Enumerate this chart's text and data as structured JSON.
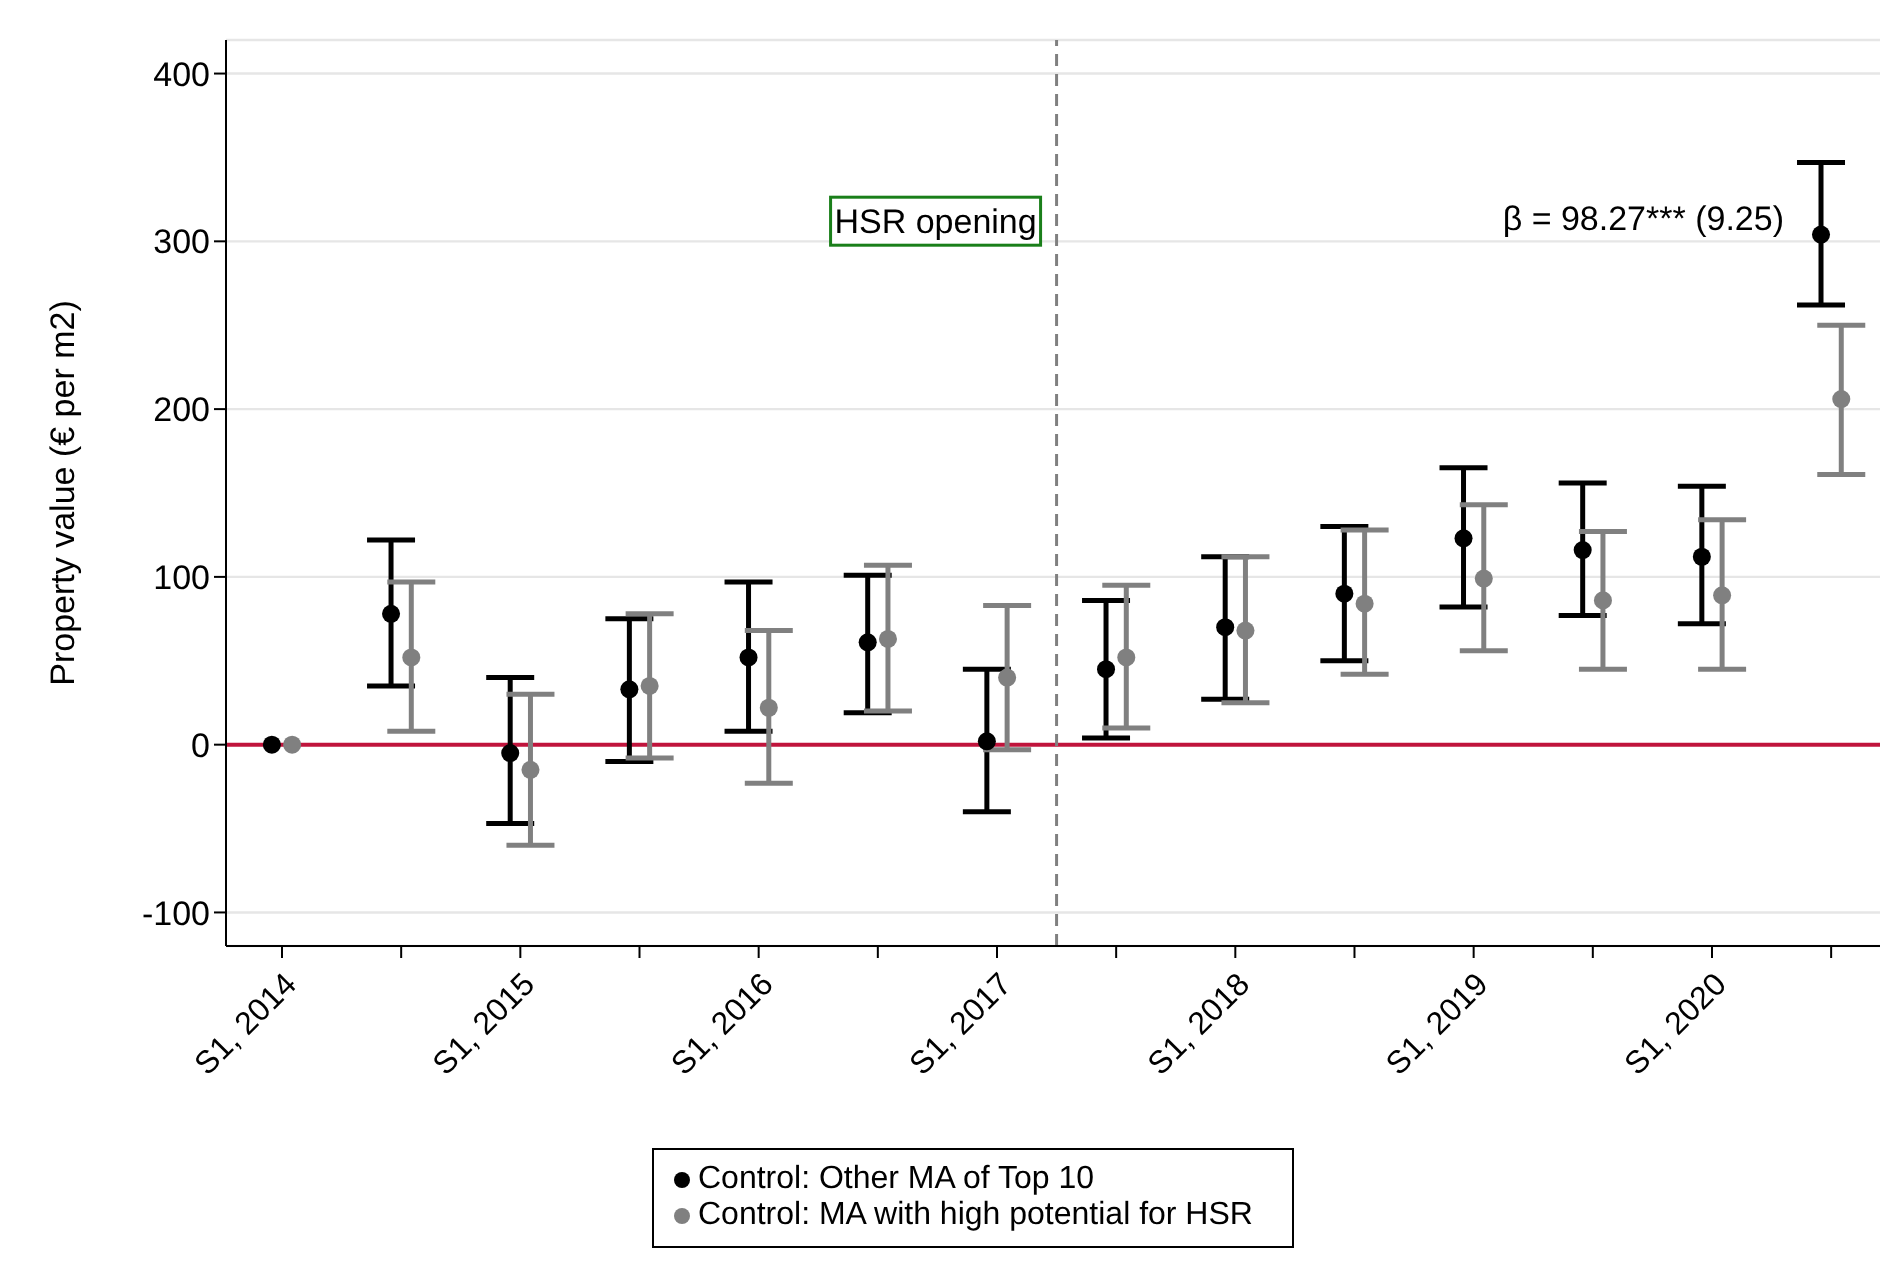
{
  "chart_data": {
    "type": "scatter",
    "ylabel": "Property value (€ per m2)",
    "categories": [
      "S1, 2014",
      null,
      "S1, 2015",
      null,
      "S1, 2016",
      null,
      "S1, 2017",
      null,
      "S1, 2018",
      null,
      "S1, 2019",
      null,
      "S1, 2020",
      null
    ],
    "ylim": [
      -120,
      420
    ],
    "yticks": [
      -100,
      0,
      100,
      200,
      300,
      400
    ],
    "series": [
      {
        "name": "Control: Other MA of Top 10",
        "color": "#000000",
        "values": [
          0,
          78,
          -5,
          33,
          52,
          61,
          2,
          45,
          70,
          90,
          123,
          116,
          112,
          304
        ],
        "errors": [
          null,
          [
            35,
            122
          ],
          [
            -47,
            40
          ],
          [
            -10,
            75
          ],
          [
            8,
            97
          ],
          [
            19,
            101
          ],
          [
            -40,
            45
          ],
          [
            4,
            86
          ],
          [
            27,
            112
          ],
          [
            50,
            130
          ],
          [
            82,
            165
          ],
          [
            77,
            156
          ],
          [
            72,
            154
          ],
          [
            262,
            347
          ]
        ]
      },
      {
        "name": "Control: MA with high potential for HSR",
        "color": "#808080",
        "values": [
          0,
          52,
          -15,
          35,
          22,
          63,
          40,
          52,
          68,
          84,
          99,
          86,
          89,
          206
        ],
        "errors": [
          null,
          [
            8,
            97
          ],
          [
            -60,
            30
          ],
          [
            -8,
            78
          ],
          [
            -23,
            68
          ],
          [
            20,
            107
          ],
          [
            -3,
            83
          ],
          [
            10,
            95
          ],
          [
            25,
            112
          ],
          [
            42,
            128
          ],
          [
            56,
            143
          ],
          [
            45,
            127
          ],
          [
            45,
            134
          ],
          [
            161,
            250
          ]
        ]
      }
    ],
    "ref_lines": [
      {
        "axis": "y",
        "value": 0,
        "color": "#c0143c",
        "line_style": "solid"
      }
    ],
    "annotations": [
      "HSR opening",
      "β = 98.27*** (9.25)"
    ],
    "grid": "y",
    "legend": "bottom",
    "marker": "circle"
  }
}
